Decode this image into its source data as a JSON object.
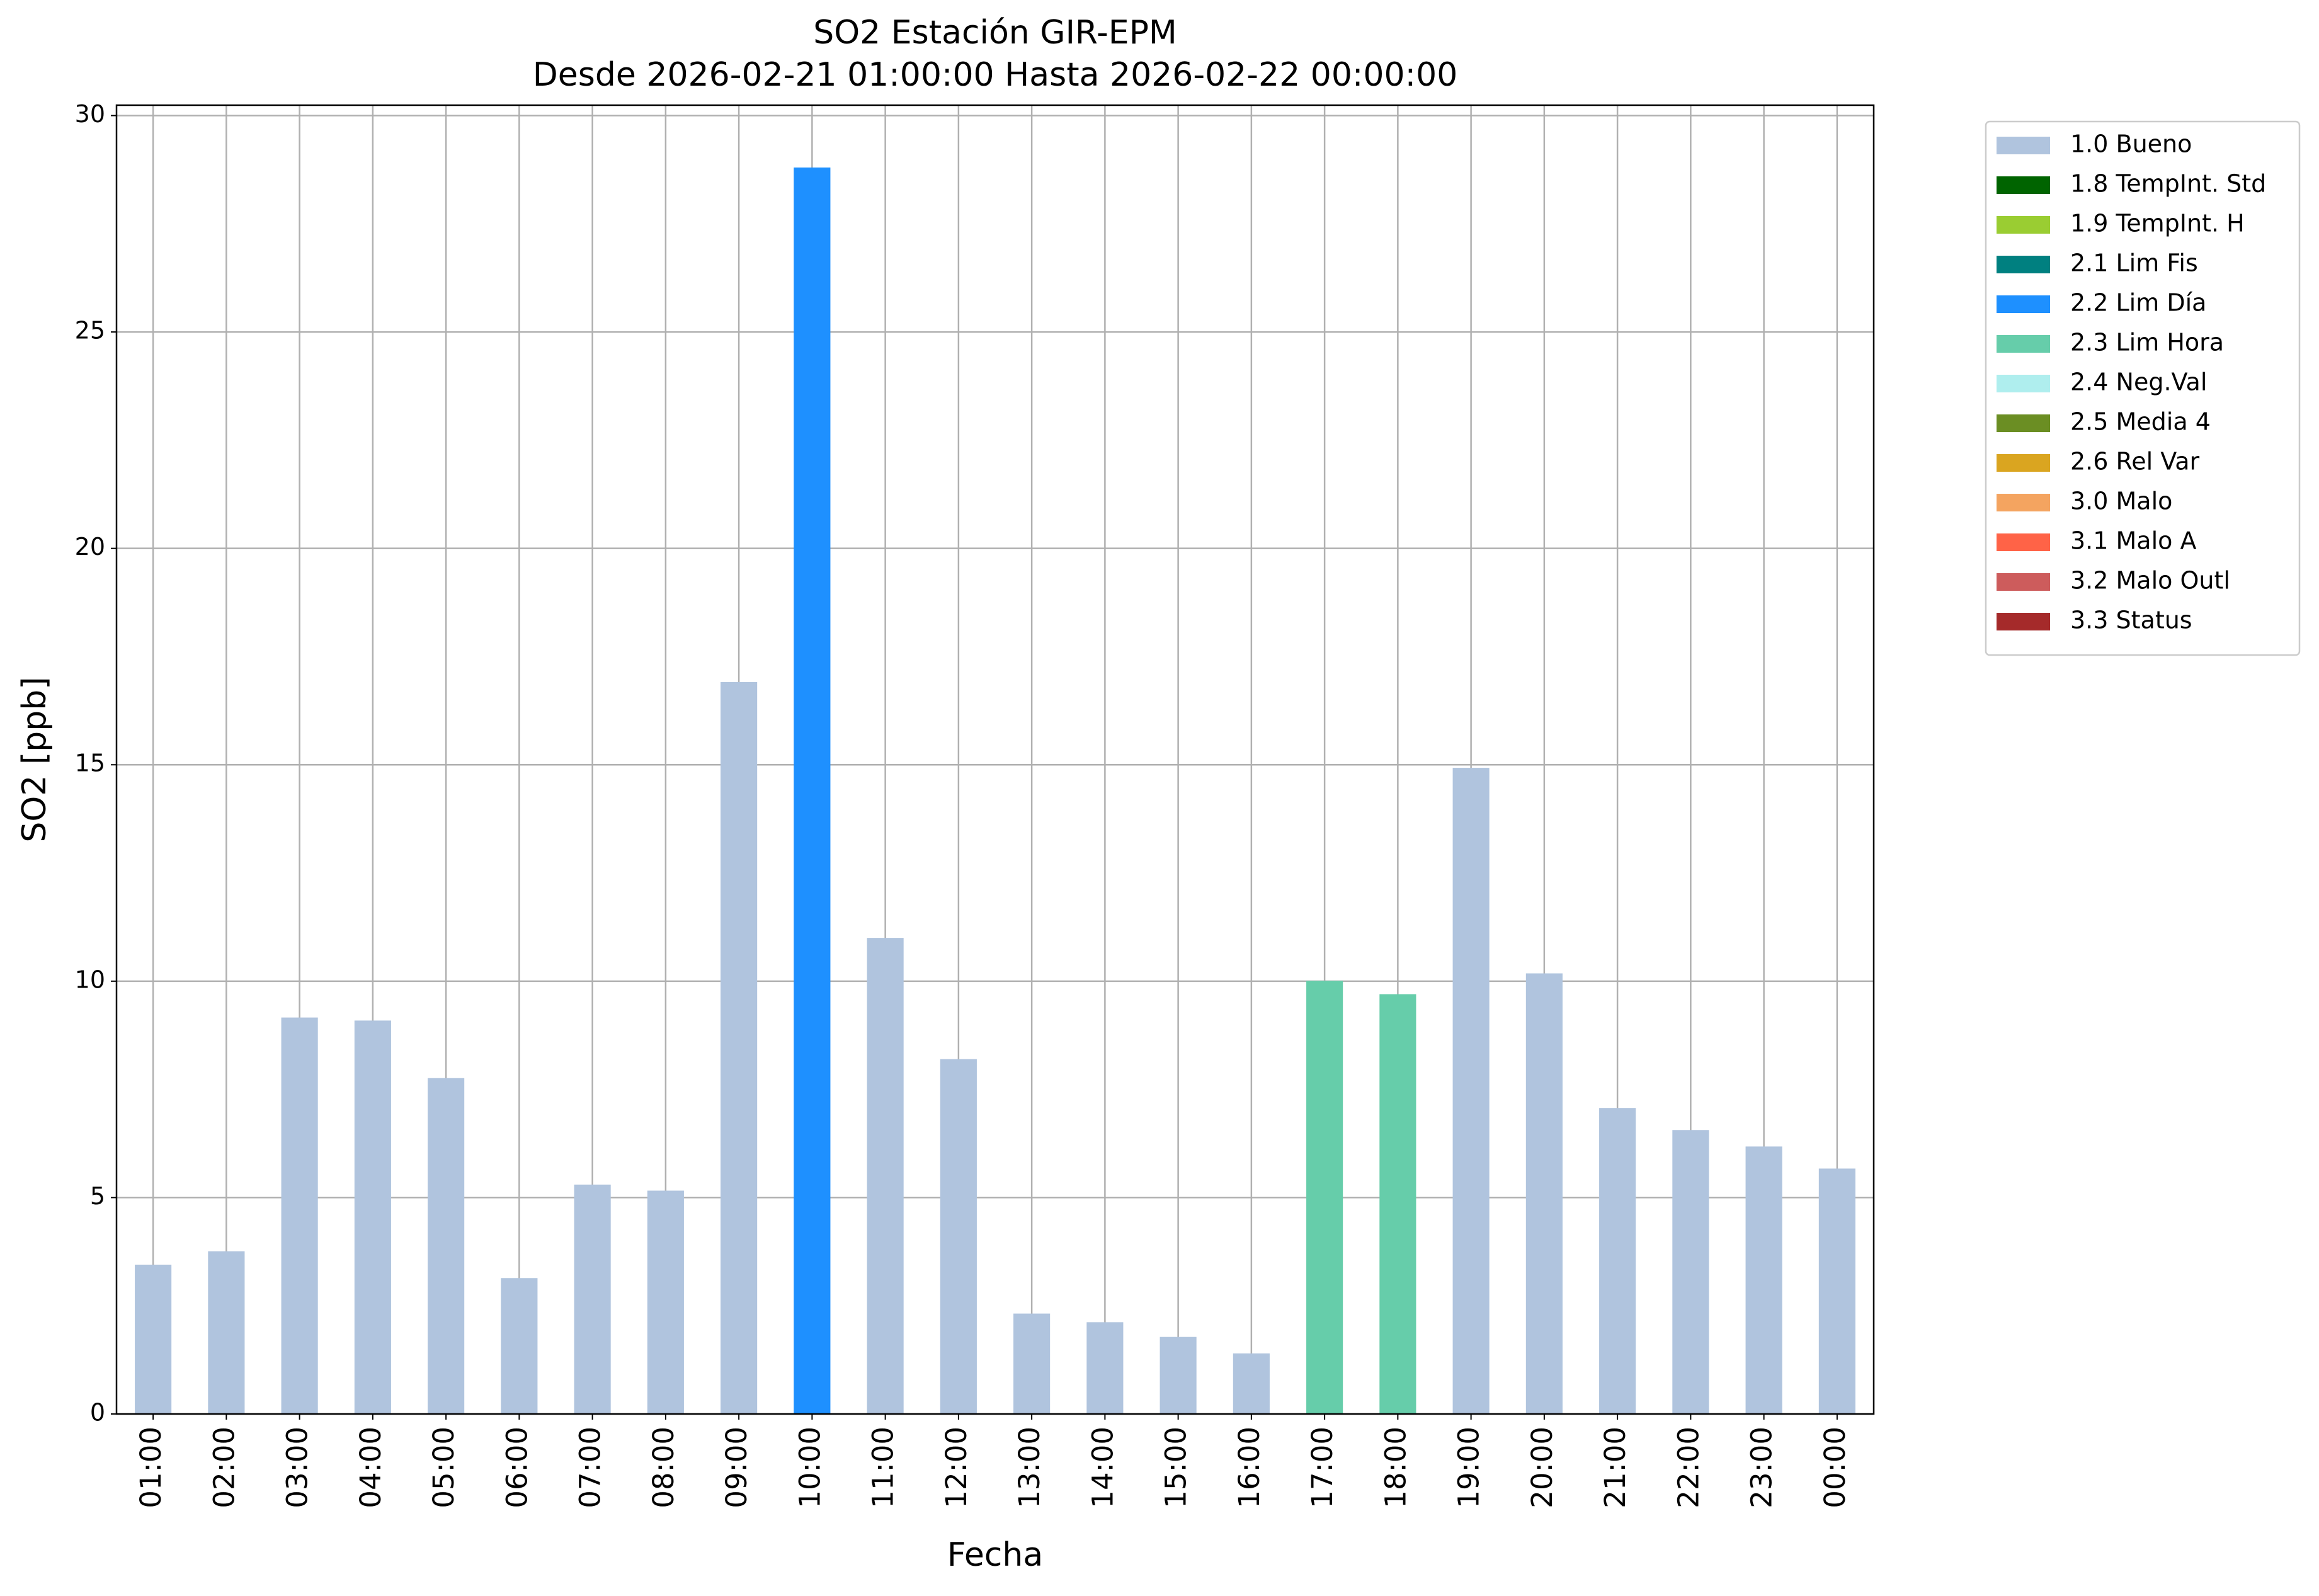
{
  "chart_data": {
    "type": "bar",
    "stacked": true,
    "title": "SO2 Estación GIR-EPM",
    "subtitle": "Desde 2026-02-21 01:00:00 Hasta 2026-02-22 00:00:00",
    "x_label": "Fecha",
    "y_label": "SO2 [ppb]",
    "categories": [
      "01:00",
      "02:00",
      "03:00",
      "04:00",
      "05:00",
      "06:00",
      "07:00",
      "08:00",
      "09:00",
      "10:00",
      "11:00",
      "12:00",
      "13:00",
      "14:00",
      "15:00",
      "16:00",
      "17:00",
      "18:00",
      "19:00",
      "20:00",
      "21:00",
      "22:00",
      "23:00",
      "00:00"
    ],
    "series": [
      {
        "name": "1.0 Bueno",
        "color": "#b0c4de",
        "values": [
          3.45,
          3.76,
          9.16,
          9.09,
          7.76,
          3.14,
          5.3,
          5.16,
          16.91,
          null,
          11.0,
          8.2,
          2.32,
          2.12,
          1.78,
          1.4,
          null,
          null,
          14.93,
          10.18,
          7.07,
          6.56,
          6.18,
          5.67
        ]
      },
      {
        "name": "1.8 TempInt. Std",
        "color": "#006400",
        "values": [
          null,
          null,
          null,
          null,
          null,
          null,
          null,
          null,
          null,
          null,
          null,
          null,
          null,
          null,
          null,
          null,
          null,
          null,
          null,
          null,
          null,
          null,
          null,
          null
        ]
      },
      {
        "name": "1.9 TempInt. H",
        "color": "#9acd32",
        "values": [
          null,
          null,
          null,
          null,
          null,
          null,
          null,
          null,
          null,
          null,
          null,
          null,
          null,
          null,
          null,
          null,
          null,
          null,
          null,
          null,
          null,
          null,
          null,
          null
        ]
      },
      {
        "name": "2.1 Lim Fis",
        "color": "#008080",
        "values": [
          null,
          null,
          null,
          null,
          null,
          null,
          null,
          null,
          null,
          null,
          null,
          null,
          null,
          null,
          null,
          null,
          null,
          null,
          null,
          null,
          null,
          null,
          null,
          null
        ]
      },
      {
        "name": "2.2 Lim Día",
        "color": "#1e90ff",
        "values": [
          null,
          null,
          null,
          null,
          null,
          null,
          null,
          null,
          null,
          28.8,
          null,
          null,
          null,
          null,
          null,
          null,
          null,
          null,
          null,
          null,
          null,
          null,
          null,
          null
        ]
      },
      {
        "name": "2.3 Lim Hora",
        "color": "#66cdaa",
        "values": [
          null,
          null,
          null,
          null,
          null,
          null,
          null,
          null,
          null,
          null,
          null,
          null,
          null,
          null,
          null,
          null,
          10.01,
          9.7,
          null,
          null,
          null,
          null,
          null,
          null
        ]
      },
      {
        "name": "2.4 Neg.Val",
        "color": "#afeeee",
        "values": [
          null,
          null,
          null,
          null,
          null,
          null,
          null,
          null,
          null,
          null,
          null,
          null,
          null,
          null,
          null,
          null,
          null,
          null,
          null,
          null,
          null,
          null,
          null,
          null
        ]
      },
      {
        "name": "2.5 Media 4",
        "color": "#6b8e23",
        "values": [
          null,
          null,
          null,
          null,
          null,
          null,
          null,
          null,
          null,
          null,
          null,
          null,
          null,
          null,
          null,
          null,
          null,
          null,
          null,
          null,
          null,
          null,
          null,
          null
        ]
      },
      {
        "name": "2.6 Rel Var",
        "color": "#daa520",
        "values": [
          null,
          null,
          null,
          null,
          null,
          null,
          null,
          null,
          null,
          null,
          null,
          null,
          null,
          null,
          null,
          null,
          null,
          null,
          null,
          null,
          null,
          null,
          null,
          null
        ]
      },
      {
        "name": "3.0 Malo",
        "color": "#f4a460",
        "values": [
          null,
          null,
          null,
          null,
          null,
          null,
          null,
          null,
          null,
          null,
          null,
          null,
          null,
          null,
          null,
          null,
          null,
          null,
          null,
          null,
          null,
          null,
          null,
          null
        ]
      },
      {
        "name": "3.1 Malo A",
        "color": "#ff6347",
        "values": [
          null,
          null,
          null,
          null,
          null,
          null,
          null,
          null,
          null,
          null,
          null,
          null,
          null,
          null,
          null,
          null,
          null,
          null,
          null,
          null,
          null,
          null,
          null,
          null
        ]
      },
      {
        "name": "3.2 Malo Outl",
        "color": "#cd5c5c",
        "values": [
          null,
          null,
          null,
          null,
          null,
          null,
          null,
          null,
          null,
          null,
          null,
          null,
          null,
          null,
          null,
          null,
          null,
          null,
          null,
          null,
          null,
          null,
          null,
          null
        ]
      },
      {
        "name": "3.3 Status",
        "color": "#a52a2a",
        "values": [
          null,
          null,
          null,
          null,
          null,
          null,
          null,
          null,
          null,
          null,
          null,
          null,
          null,
          null,
          null,
          null,
          null,
          null,
          null,
          null,
          null,
          null,
          null,
          null
        ]
      }
    ],
    "ylim": [
      0,
      30.24
    ],
    "yticks": [
      0,
      5,
      10,
      15,
      20,
      25,
      30
    ],
    "grid": true,
    "legend": "outside-right"
  }
}
